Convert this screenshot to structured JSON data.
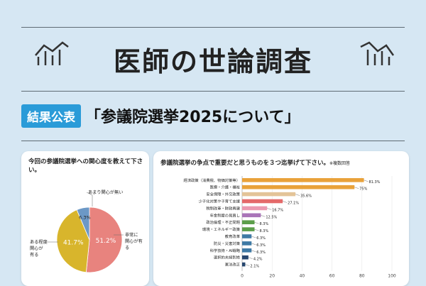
{
  "header": {
    "title": "医師の世論調査",
    "badge": "結果公表",
    "subtitle": "「参議院選挙2025について」"
  },
  "chart_data": [
    {
      "type": "pie",
      "title": "今回の参議院選挙への関心度を教えて下さい。",
      "labels": [
        "非常に関心が有る",
        "ある程度関心が有る",
        "あまり関心が無い"
      ],
      "values": [
        51.2,
        41.7,
        6.3
      ],
      "value_labels": [
        "51.2%",
        "41.7%",
        "6.3%"
      ],
      "colors": [
        "#e8837e",
        "#d8b52c",
        "#6c98c6"
      ]
    },
    {
      "type": "bar",
      "orientation": "horizontal",
      "title": "参議院選挙の争点で重要だと思うものを３つ迄挙げて下さい。",
      "note": "※複数回答",
      "categories": [
        "経済政策（消費税、物価対策等）",
        "医療・介護・福祉",
        "安全保障・外交政策",
        "少子化対策や子育て支援",
        "税制改革・財政再建",
        "年金制度の見直し",
        "政治倫理・不正問題",
        "環境・エネルギー政策",
        "教育改革",
        "防災・災害対策",
        "科学技術・AI戦略",
        "選択的夫婦別姓",
        "憲法改正"
      ],
      "values": [
        81.3,
        75,
        35.6,
        27.1,
        16.7,
        12.5,
        8.3,
        8.3,
        6.3,
        6.3,
        6.3,
        4.2,
        2.1
      ],
      "value_labels": [
        "81.3%",
        "75%",
        "35.6%",
        "27.1%",
        "16.7%",
        "12.5%",
        "8.3%",
        "8.3%",
        "6.3%",
        "6.3%",
        "6.3%",
        "4.2%",
        "2.1%"
      ],
      "colors": [
        "#e9a23a",
        "#e9a23a",
        "#e3c498",
        "#e46a6a",
        "#eb9ab0",
        "#a974b8",
        "#5c9e4a",
        "#5c9e4a",
        "#3f7aa5",
        "#3f7aa5",
        "#3f7aa5",
        "#27476f",
        "#27476f"
      ],
      "xlim": [
        0,
        100
      ],
      "xticks": [
        "0",
        "20",
        "40",
        "60",
        "80",
        "100"
      ]
    }
  ]
}
